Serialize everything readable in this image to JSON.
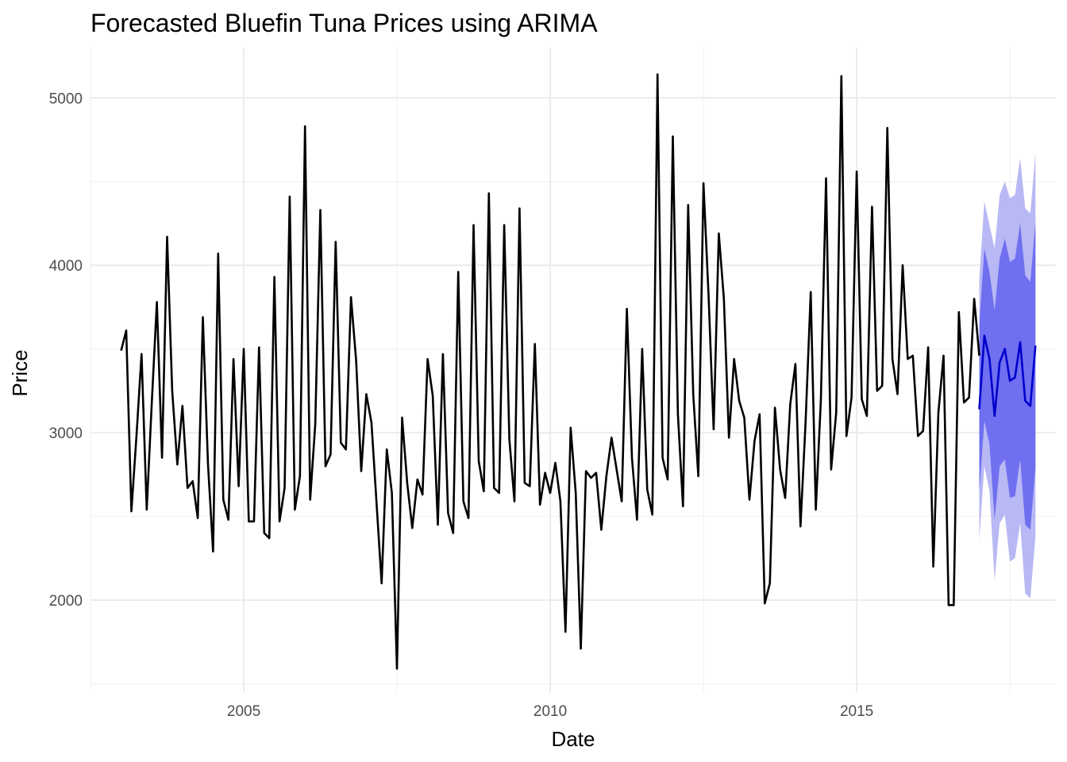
{
  "chart_data": {
    "type": "line",
    "title": "Forecasted Bluefin Tuna Prices using ARIMA",
    "xlabel": "Date",
    "ylabel": "Price",
    "xlim": [
      2002.5,
      2018.25
    ],
    "ylim": [
      1450,
      5300
    ],
    "x_ticks": [
      2005,
      2010,
      2015
    ],
    "x_tick_labels": [
      "2005",
      "2010",
      "2015"
    ],
    "y_ticks": [
      2000,
      3000,
      4000,
      5000
    ],
    "y_tick_labels": [
      "2000",
      "3000",
      "4000",
      "5000"
    ],
    "grid": true,
    "legend": "none",
    "colors": {
      "history": "#000000",
      "forecast": "#0000cc",
      "band80": "#6f6ff0",
      "band95": "#b8b8f5"
    },
    "series": [
      {
        "x_start": 2003.0,
        "x_step": 0.083333,
        "values": [
          3490,
          3610,
          2530,
          2980,
          3470,
          2540,
          3180,
          3780,
          2850,
          4170,
          3250,
          2810,
          3160,
          2670,
          2710,
          2490,
          3690,
          2810,
          2290,
          4070,
          2600,
          2480,
          3440,
          2680,
          3500,
          2470,
          2470,
          3510,
          2400,
          2370,
          3930,
          2470,
          2670,
          4410,
          2540,
          2740,
          4830,
          2600,
          3050,
          4330,
          2800,
          2870,
          4140,
          2940,
          2900,
          3810,
          3430,
          2770,
          3230,
          3060,
          2580,
          2100,
          2900,
          2640,
          1590,
          3090,
          2700,
          2430,
          2720,
          2630,
          3440,
          3220,
          2450,
          3470,
          2520,
          2400,
          3960,
          2590,
          2490,
          4240,
          2830,
          2650,
          4430,
          2670,
          2640,
          4240,
          2960,
          2590,
          4340,
          2700,
          2680,
          3530,
          2570,
          2760,
          2640,
          2820,
          2590,
          1810,
          3030,
          2640,
          1710,
          2770,
          2730,
          2760,
          2420,
          2740,
          2970,
          2780,
          2590,
          3740,
          2850,
          2480,
          3500,
          2660,
          2510,
          5140,
          2850,
          2720,
          4770,
          3110,
          2560,
          4360,
          3230,
          2740,
          4490,
          3820,
          3020,
          4190,
          3800,
          2970,
          3440,
          3190,
          3090,
          2600,
          2950,
          3110,
          1980,
          2100,
          3150,
          2780,
          2610,
          3170,
          3410,
          2440,
          3060,
          3840,
          2540,
          3200,
          4520,
          2780,
          3120,
          5130,
          2980,
          3210,
          4560,
          3200,
          3100,
          4350,
          3250,
          3280,
          4820,
          3440,
          3230,
          4000,
          3440,
          3460,
          2980,
          3010,
          3510,
          2200,
          3120,
          3460,
          1970,
          1970,
          3720,
          3180,
          3210,
          3800,
          3460
        ]
      },
      {
        "x_start": 2017.0,
        "x_step": 0.083333,
        "values": [
          3140,
          3580,
          3440,
          3100,
          3420,
          3500,
          3310,
          3330,
          3540,
          3190,
          3160,
          3520
        ]
      }
    ],
    "band80": {
      "lower": [
        2640,
        3070,
        2930,
        2480,
        2800,
        2840,
        2610,
        2620,
        2840,
        2450,
        2420,
        2790
      ],
      "upper": [
        3640,
        4100,
        3960,
        3730,
        4040,
        4160,
        4020,
        4040,
        4250,
        3940,
        3900,
        4260
      ]
    },
    "band95": {
      "lower": [
        2360,
        2800,
        2650,
        2120,
        2460,
        2510,
        2230,
        2250,
        2460,
        2040,
        2010,
        2380
      ],
      "upper": [
        3920,
        4380,
        4240,
        4100,
        4420,
        4500,
        4400,
        4420,
        4640,
        4340,
        4310,
        4670
      ]
    }
  }
}
